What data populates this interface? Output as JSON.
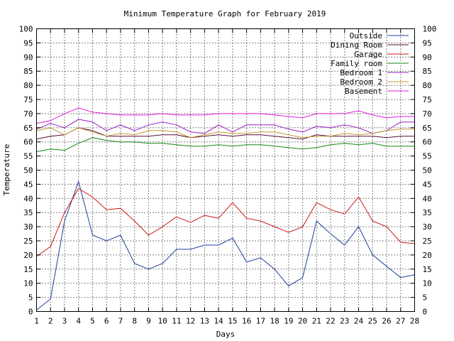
{
  "chart_data": {
    "type": "line",
    "title": "Minimum Temperature Graph for February 2019",
    "xlabel": "Days",
    "ylabel": "Temperature",
    "xlim": [
      1,
      28
    ],
    "ylim": [
      0,
      100
    ],
    "x_ticks": [
      1,
      2,
      3,
      4,
      5,
      6,
      7,
      8,
      9,
      10,
      11,
      12,
      13,
      14,
      15,
      16,
      17,
      18,
      19,
      20,
      21,
      22,
      23,
      24,
      25,
      26,
      27,
      28
    ],
    "y_ticks": [
      0,
      5,
      10,
      15,
      20,
      25,
      30,
      35,
      40,
      45,
      50,
      55,
      60,
      65,
      70,
      75,
      80,
      85,
      90,
      95,
      100
    ],
    "grid": true,
    "legend_position": "top-right",
    "x": [
      1,
      2,
      3,
      4,
      5,
      6,
      7,
      8,
      9,
      10,
      11,
      12,
      13,
      14,
      15,
      16,
      17,
      18,
      19,
      20,
      21,
      22,
      23,
      24,
      25,
      26,
      27,
      28
    ],
    "series": [
      {
        "name": "Outside",
        "color": "#1f3fa0",
        "values": [
          0.5,
          4.5,
          32,
          46,
          27,
          25,
          27,
          17,
          15,
          17,
          22,
          22,
          23.5,
          23.5,
          26,
          17.5,
          19,
          15,
          9,
          12,
          32,
          27.5,
          23.5,
          30,
          20,
          16,
          12,
          13
        ]
      },
      {
        "name": "Dining Room",
        "color": "#5a0f3c",
        "values": [
          61,
          62,
          62.5,
          65,
          64,
          62,
          62,
          62,
          62,
          62.5,
          62.5,
          61.5,
          62,
          62.5,
          62,
          62.5,
          62.5,
          62,
          61.5,
          61,
          62.5,
          62,
          62,
          62,
          62,
          61.5,
          62,
          62
        ]
      },
      {
        "name": "Garage",
        "color": "#cc1a1a",
        "values": [
          19.5,
          23,
          35,
          43.5,
          40.5,
          36,
          36.5,
          32,
          27,
          30,
          33.5,
          31.5,
          34,
          33,
          38.5,
          33,
          32,
          30,
          28,
          30,
          38.5,
          36,
          34.5,
          40.5,
          32,
          30,
          24.5,
          24
        ]
      },
      {
        "name": "Family room",
        "color": "#138a13",
        "values": [
          56.5,
          57.5,
          57,
          59.5,
          61.5,
          60.5,
          60,
          60,
          59.5,
          59.5,
          59,
          58.5,
          58.5,
          59,
          58.5,
          59,
          59,
          58.5,
          58,
          57.5,
          58,
          59,
          59.5,
          59,
          59.5,
          58.5,
          58.5,
          58.5
        ]
      },
      {
        "name": "Bedroom 1",
        "color": "#9b22c8",
        "values": [
          64.5,
          66.5,
          65,
          68,
          67,
          64,
          66,
          64,
          66,
          67,
          66,
          63.5,
          63,
          66,
          63.5,
          66,
          66,
          66,
          64.5,
          63.5,
          65.5,
          65,
          66,
          65,
          63,
          64,
          67,
          67
        ]
      },
      {
        "name": "Bedroom 2",
        "color": "#c89a2a",
        "values": [
          64,
          65,
          62.5,
          65,
          63.5,
          62,
          63,
          62.5,
          64,
          64,
          63.5,
          61.5,
          62.5,
          63.5,
          63,
          63,
          63.5,
          63.5,
          62.5,
          61.5,
          62,
          62,
          63,
          62.5,
          63,
          64,
          64.5,
          64.5
        ]
      },
      {
        "name": "Basement",
        "color": "#e61ee6",
        "values": [
          66.5,
          67.5,
          70,
          72,
          70.5,
          70,
          69.5,
          69.5,
          69.5,
          70,
          69.5,
          69.5,
          69.5,
          70,
          70,
          70,
          70,
          69.5,
          69,
          68.5,
          70,
          70,
          70,
          71,
          69.5,
          68.5,
          69,
          69
        ]
      }
    ]
  }
}
